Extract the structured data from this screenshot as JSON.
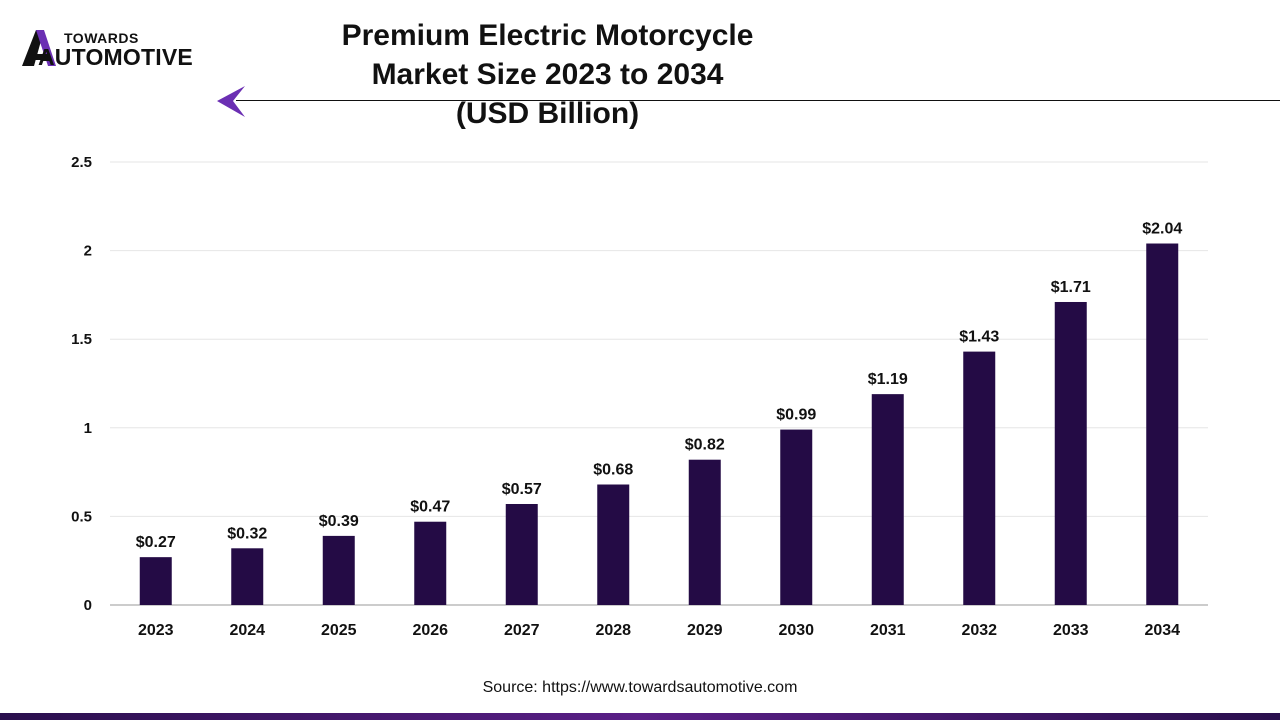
{
  "brand": {
    "name_top": "TOWARDS",
    "name_bottom": "AUTOMOTIVE"
  },
  "colors": {
    "bar": "#240b45",
    "accent": "#6b2fb3",
    "grid": "#e6e6e6",
    "axis": "#cccccc"
  },
  "source": "Source: https://www.towardsautomotive.com",
  "chart_data": {
    "type": "bar",
    "title": "Premium Electric Motorcycle Market Size 2023 to 2034",
    "subtitle": "(USD Billion)",
    "categories": [
      "2023",
      "2024",
      "2025",
      "2026",
      "2027",
      "2028",
      "2029",
      "2030",
      "2031",
      "2032",
      "2033",
      "2034"
    ],
    "values": [
      0.27,
      0.32,
      0.39,
      0.47,
      0.57,
      0.68,
      0.82,
      0.99,
      1.19,
      1.43,
      1.71,
      2.04
    ],
    "data_labels": [
      "$0.27",
      "$0.32",
      "$0.39",
      "$0.47",
      "$0.57",
      "$0.68",
      "$0.82",
      "$0.99",
      "$1.19",
      "$1.43",
      "$1.71",
      "$2.04"
    ],
    "yticks": [
      0,
      0.5,
      1,
      1.5,
      2,
      2.5
    ],
    "ytick_labels": [
      "0",
      "0.5",
      "1",
      "1.5",
      "2",
      "2.5"
    ],
    "ylim": [
      0,
      2.5
    ],
    "xlabel": "",
    "ylabel": "",
    "grid": true,
    "legend": "none"
  }
}
